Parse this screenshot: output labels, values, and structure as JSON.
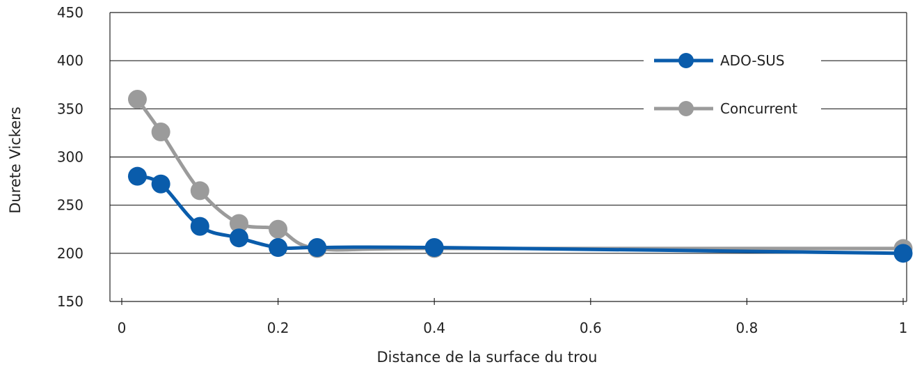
{
  "chart_data": {
    "type": "line",
    "title": "",
    "xlabel": "Distance de la surface du trou",
    "ylabel": "Durete Vickers",
    "xlim": [
      0,
      1
    ],
    "ylim": [
      150,
      450
    ],
    "x_ticks": [
      "0",
      "0.2",
      "0.4",
      "0.6",
      "0.8",
      "1"
    ],
    "y_ticks": [
      "150",
      "200",
      "250",
      "300",
      "350",
      "400",
      "450"
    ],
    "grid": "horizontal",
    "legend_position": "top-right",
    "series": [
      {
        "name": "ADO-SUS",
        "color": "#0a5cab",
        "points": [
          {
            "x": 0.02,
            "y": 280
          },
          {
            "x": 0.05,
            "y": 272
          },
          {
            "x": 0.1,
            "y": 228
          },
          {
            "x": 0.15,
            "y": 216
          },
          {
            "x": 0.2,
            "y": 206
          },
          {
            "x": 0.25,
            "y": 206
          },
          {
            "x": 0.4,
            "y": 206
          },
          {
            "x": 1.0,
            "y": 200
          }
        ]
      },
      {
        "name": "Concurrent",
        "color": "#9b9b9b",
        "points": [
          {
            "x": 0.02,
            "y": 360
          },
          {
            "x": 0.05,
            "y": 326
          },
          {
            "x": 0.1,
            "y": 265
          },
          {
            "x": 0.15,
            "y": 231
          },
          {
            "x": 0.2,
            "y": 225
          },
          {
            "x": 0.25,
            "y": 205
          },
          {
            "x": 0.4,
            "y": 205
          },
          {
            "x": 1.0,
            "y": 205
          }
        ]
      }
    ]
  }
}
